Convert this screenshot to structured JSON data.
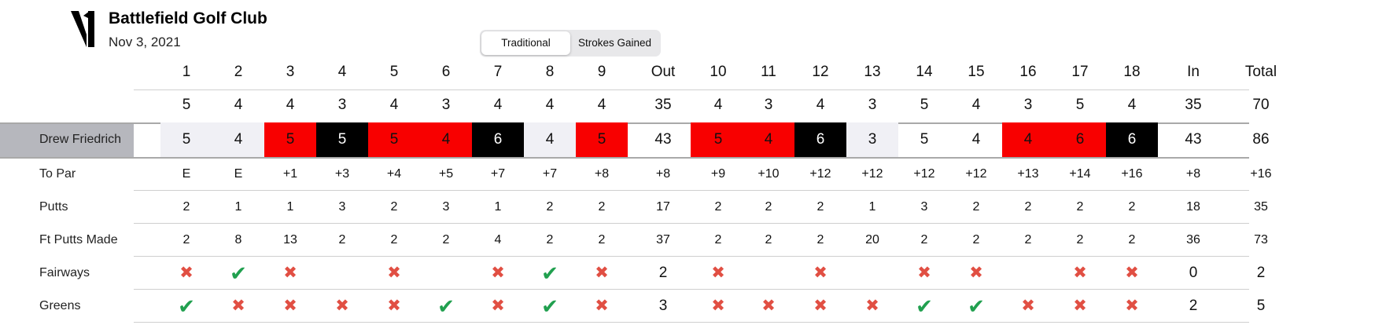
{
  "header": {
    "club_name": "Battlefield Golf Club",
    "date": "Nov 3, 2021"
  },
  "view_toggle": {
    "options": [
      "Traditional",
      "Strokes Gained"
    ],
    "selected": "Traditional"
  },
  "colors": {
    "over_par": "#f80000",
    "double_or_worse": "#000000",
    "par": "#f0f0f5",
    "hit": "#21a04f",
    "miss": "#e14f43"
  },
  "scorecard": {
    "columns": [
      "1",
      "2",
      "3",
      "4",
      "5",
      "6",
      "7",
      "8",
      "9",
      "Out",
      "10",
      "11",
      "12",
      "13",
      "14",
      "15",
      "16",
      "17",
      "18",
      "In",
      "Total"
    ],
    "par": [
      "5",
      "4",
      "4",
      "3",
      "4",
      "3",
      "4",
      "4",
      "4",
      "35",
      "4",
      "3",
      "4",
      "3",
      "5",
      "4",
      "3",
      "5",
      "4",
      "35",
      "70"
    ],
    "player": {
      "name": "Drew Friedrich",
      "scores": [
        "5",
        "4",
        "5",
        "5",
        "5",
        "4",
        "6",
        "4",
        "5",
        "43",
        "5",
        "4",
        "6",
        "3",
        "5",
        "4",
        "4",
        "6",
        "6",
        "43",
        "86"
      ],
      "score_styles": [
        "par",
        "par",
        "bogey",
        "double",
        "bogey",
        "bogey",
        "double",
        "par",
        "bogey",
        "total",
        "bogey",
        "bogey",
        "double",
        "par",
        "none",
        "none",
        "bogey",
        "bogey",
        "double",
        "total",
        "total"
      ]
    },
    "rows": [
      {
        "label": "To Par",
        "values": [
          "E",
          "E",
          "+1",
          "+3",
          "+4",
          "+5",
          "+7",
          "+7",
          "+8",
          "+8",
          "+9",
          "+10",
          "+12",
          "+12",
          "+12",
          "+12",
          "+13",
          "+14",
          "+16",
          "+8",
          "+16"
        ]
      },
      {
        "label": "Putts",
        "values": [
          "2",
          "1",
          "1",
          "3",
          "2",
          "3",
          "1",
          "2",
          "2",
          "17",
          "2",
          "2",
          "2",
          "1",
          "3",
          "2",
          "2",
          "2",
          "2",
          "18",
          "35"
        ]
      },
      {
        "label": "Ft Putts Made",
        "values": [
          "2",
          "8",
          "13",
          "2",
          "2",
          "2",
          "4",
          "2",
          "2",
          "37",
          "2",
          "2",
          "2",
          "20",
          "2",
          "2",
          "2",
          "2",
          "2",
          "36",
          "73"
        ]
      },
      {
        "label": "Fairways",
        "values": [
          "miss",
          "hit",
          "miss",
          "",
          "miss",
          "",
          "miss",
          "hit",
          "miss",
          "2",
          "miss",
          "",
          "miss",
          "",
          "miss",
          "miss",
          "",
          "miss",
          "miss",
          "0",
          "2"
        ]
      },
      {
        "label": "Greens",
        "values": [
          "hit",
          "miss",
          "miss",
          "miss",
          "miss",
          "hit",
          "miss",
          "hit",
          "miss",
          "3",
          "miss",
          "miss",
          "miss",
          "miss",
          "hit",
          "hit",
          "miss",
          "miss",
          "miss",
          "2",
          "5"
        ]
      }
    ]
  }
}
